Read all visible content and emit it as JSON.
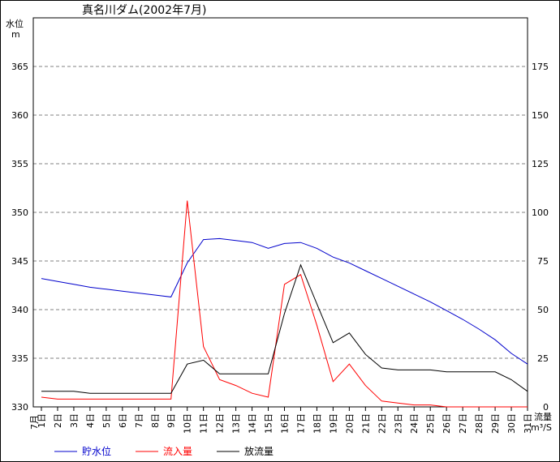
{
  "chart_data": {
    "type": "line",
    "title": "真名川ダム(2002年7月)",
    "left_axis": {
      "label": "水位",
      "unit": "m",
      "range": [
        330,
        370
      ],
      "ticks": [
        "330",
        "335",
        "340",
        "345",
        "350",
        "355",
        "360",
        "365"
      ]
    },
    "right_axis": {
      "label": "流量",
      "unit": "m³/S",
      "range": [
        0,
        200
      ],
      "ticks": [
        "0",
        "25",
        "50",
        "75",
        "100",
        "125",
        "150",
        "175"
      ]
    },
    "x_axis": {
      "month_label": "7月",
      "categories": [
        "1日",
        "2日",
        "3日",
        "4日",
        "5日",
        "6日",
        "7日",
        "8日",
        "9日",
        "10日",
        "11日",
        "12日",
        "13日",
        "14日",
        "15日",
        "16日",
        "17日",
        "18日",
        "19日",
        "20日",
        "21日",
        "22日",
        "23日",
        "24日",
        "25日",
        "26日",
        "27日",
        "28日",
        "29日",
        "30日",
        "31日"
      ]
    },
    "grid": true,
    "legend_position": "bottom",
    "series": [
      {
        "name": "貯水位",
        "axis": "left",
        "color": "#0000cc",
        "values": [
          343.2,
          342.9,
          342.6,
          342.3,
          342.1,
          341.9,
          341.7,
          341.5,
          341.3,
          344.8,
          347.2,
          347.3,
          347.1,
          346.9,
          346.3,
          346.8,
          346.9,
          346.3,
          345.4,
          344.8,
          344.0,
          343.2,
          342.4,
          341.6,
          340.8,
          339.9,
          339.0,
          338.0,
          336.9,
          335.5,
          334.4
        ]
      },
      {
        "name": "流入量",
        "axis": "right",
        "color": "#ff0000",
        "values": [
          5,
          4,
          4,
          4,
          4,
          4,
          4,
          4,
          4,
          106,
          31,
          14,
          11,
          7,
          5,
          63,
          68,
          42,
          13,
          22,
          11,
          3,
          2,
          1,
          1,
          0,
          0,
          0,
          0,
          0,
          0
        ]
      },
      {
        "name": "放流量",
        "axis": "right",
        "color": "#000000",
        "values": [
          8,
          8,
          8,
          7,
          7,
          7,
          7,
          7,
          7,
          22,
          24,
          17,
          17,
          17,
          17,
          48,
          73,
          53,
          33,
          38,
          27,
          20,
          19,
          19,
          19,
          18,
          18,
          18,
          18,
          14,
          8
        ]
      }
    ]
  }
}
